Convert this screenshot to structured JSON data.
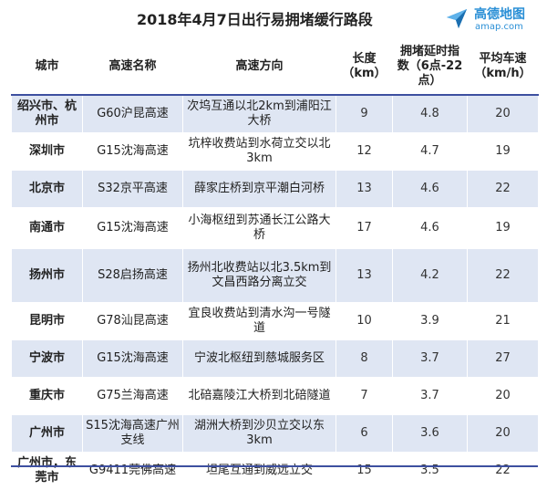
{
  "title": "2018年4月7日出行易拥堵缓行路段",
  "logo": {
    "name": "高德地图",
    "url": "amap.com",
    "icon": "amap-paper-plane-icon",
    "color": "#2a8fd6"
  },
  "colors": {
    "header_rule": "#3d4fa0",
    "stripe": "#dfe6f3"
  },
  "table": {
    "headers": [
      "城市",
      "高速名称",
      "高速方向",
      "长度（km）",
      "拥堵延时指数（6点-22点）",
      "平均车速（km/h）"
    ],
    "rows": [
      {
        "city": "绍兴市、杭州市",
        "highway": "G60沪昆高速",
        "direction": "次坞互通以北2km到浦阳江大桥",
        "length": "9",
        "delay_index": "4.8",
        "avg_speed": "20"
      },
      {
        "city": "深圳市",
        "highway": "G15沈海高速",
        "direction": "坑梓收费站到水荷立交以北3km",
        "length": "12",
        "delay_index": "4.7",
        "avg_speed": "19"
      },
      {
        "city": "北京市",
        "highway": "S32京平高速",
        "direction": "薛家庄桥到京平潮白河桥",
        "length": "13",
        "delay_index": "4.6",
        "avg_speed": "22"
      },
      {
        "city": "南通市",
        "highway": "G15沈海高速",
        "direction": "小海枢纽到苏通长江公路大桥",
        "length": "17",
        "delay_index": "4.6",
        "avg_speed": "19"
      },
      {
        "city": "扬州市",
        "highway": "S28启扬高速",
        "direction": "扬州北收费站以北3.5km到文昌西路分离立交",
        "length": "13",
        "delay_index": "4.2",
        "avg_speed": "22"
      },
      {
        "city": "昆明市",
        "highway": "G78汕昆高速",
        "direction": "宜良收费站到清水沟一号隧道",
        "length": "10",
        "delay_index": "3.9",
        "avg_speed": "21"
      },
      {
        "city": "宁波市",
        "highway": "G15沈海高速",
        "direction": "宁波北枢纽到慈城服务区",
        "length": "8",
        "delay_index": "3.7",
        "avg_speed": "27"
      },
      {
        "city": "重庆市",
        "highway": "G75兰海高速",
        "direction": "北碚嘉陵江大桥到北碚隧道",
        "length": "7",
        "delay_index": "3.7",
        "avg_speed": "20"
      },
      {
        "city": "广州市",
        "highway": "S15沈海高速广州支线",
        "direction": "湖洲大桥到沙贝立交以东3km",
        "length": "6",
        "delay_index": "3.6",
        "avg_speed": "20"
      },
      {
        "city": "广州市，东莞市",
        "highway": "G9411莞佛高速",
        "direction": "坦尾互通到威远立交",
        "length": "15",
        "delay_index": "3.5",
        "avg_speed": "22"
      }
    ]
  }
}
